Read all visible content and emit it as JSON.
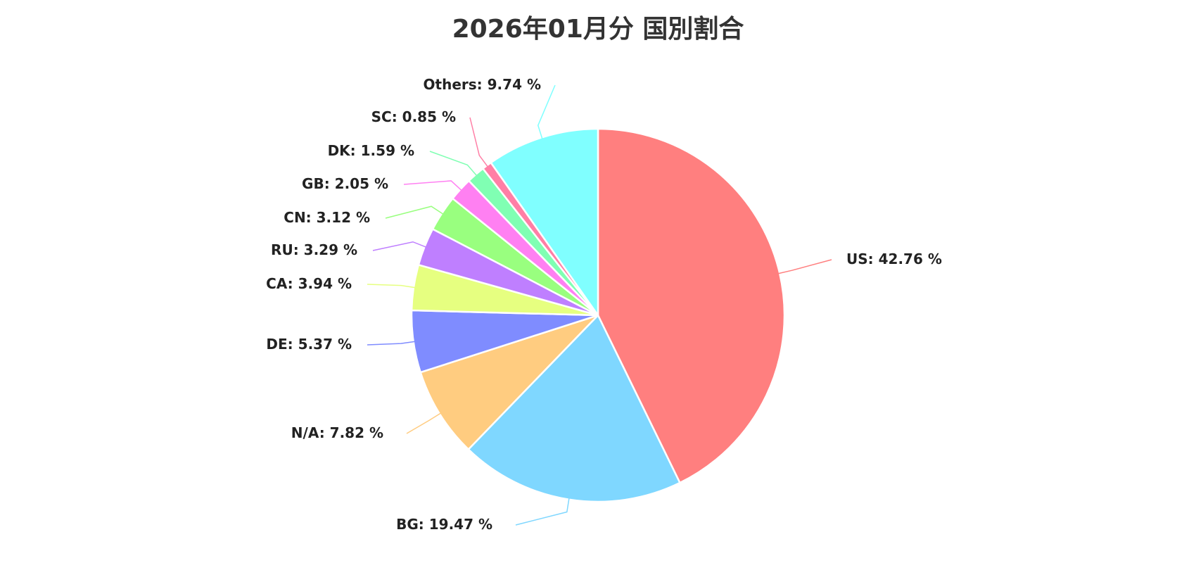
{
  "chart_data": {
    "type": "pie",
    "title": "2026年01月分 国別割合",
    "unit": "%",
    "slices": [
      {
        "label": "US",
        "value": 42.76,
        "color": "#ff7f7f",
        "display": "US: 42.76 %"
      },
      {
        "label": "BG",
        "value": 19.47,
        "color": "#7fd7ff",
        "display": "BG: 19.47 %"
      },
      {
        "label": "N/A",
        "value": 7.82,
        "color": "#ffcc80",
        "display": "N/A: 7.82 %"
      },
      {
        "label": "DE",
        "value": 5.37,
        "color": "#7f8cff",
        "display": "DE: 5.37 %"
      },
      {
        "label": "CA",
        "value": 3.94,
        "color": "#e6ff80",
        "display": "CA: 3.94 %"
      },
      {
        "label": "RU",
        "value": 3.29,
        "color": "#bf7fff",
        "display": "RU: 3.29 %"
      },
      {
        "label": "CN",
        "value": 3.12,
        "color": "#99ff7f",
        "display": "CN: 3.12 %"
      },
      {
        "label": "GB",
        "value": 2.05,
        "color": "#ff80f2",
        "display": "GB: 2.05 %"
      },
      {
        "label": "DK",
        "value": 1.59,
        "color": "#80ffb3",
        "display": "DK: 1.59 %"
      },
      {
        "label": "SC",
        "value": 0.85,
        "color": "#ff7fa6",
        "display": "SC: 0.85 %"
      },
      {
        "label": "Others",
        "value": 9.74,
        "color": "#80ffff",
        "display": "Others: 9.74 %"
      }
    ],
    "start_angle": "12 o'clock",
    "direction": "clockwise",
    "legend": "none"
  }
}
